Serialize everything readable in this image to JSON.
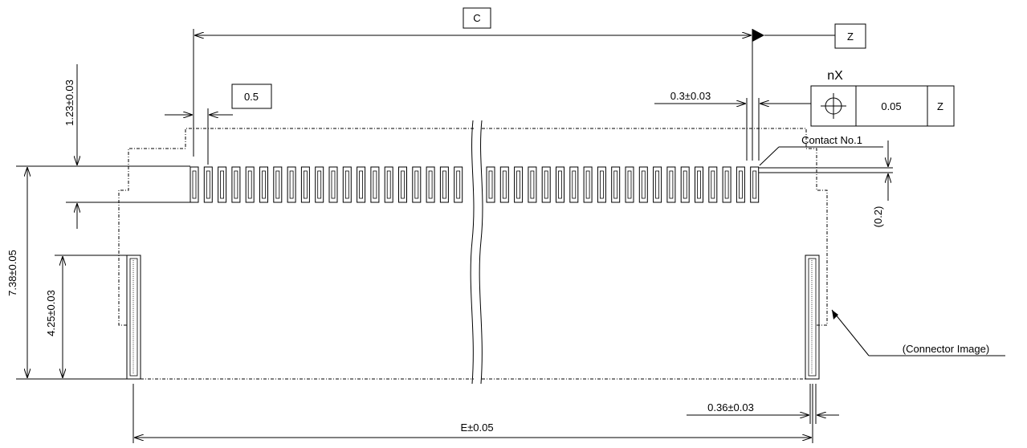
{
  "diagram": {
    "datum_c": "C",
    "datum_z": "Z",
    "pitch_box": "0.5",
    "dim_contact_width": "0.3±0.03",
    "fcf_label": "nX",
    "fcf_tolerance": "0.05",
    "fcf_datum": "Z",
    "contact_label": "Contact No.1",
    "dim_top_step": "1.23±0.03",
    "dim_side_ref": "(0.2)",
    "dim_total_height": "7.38±0.05",
    "dim_side_height": "4.25±0.03",
    "connector_label": "(Connector Image)",
    "dim_tab_width": "0.36±0.03",
    "dim_width_e": "E±0.05"
  }
}
